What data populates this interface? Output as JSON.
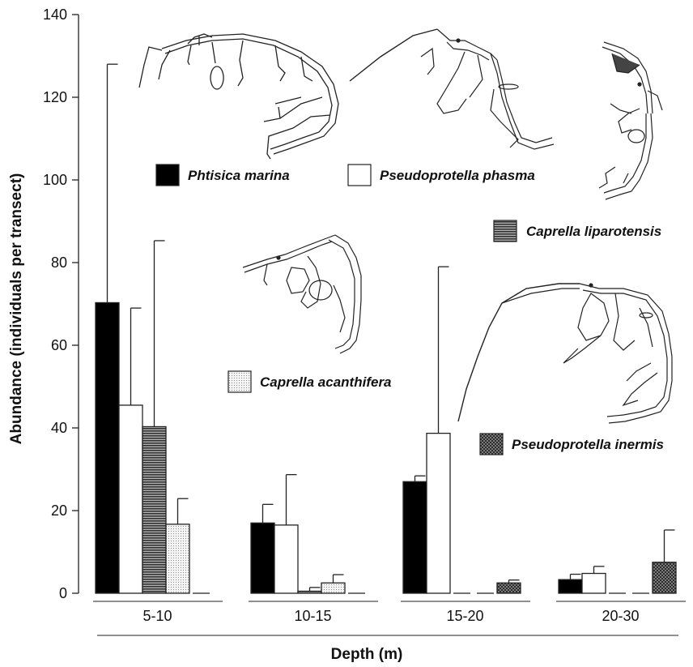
{
  "chart_data": {
    "type": "bar",
    "xlabel": "Depth (m)",
    "ylabel": "Abundance (individuals per transect)",
    "ylim": [
      0,
      140
    ],
    "yticks": [
      0,
      20,
      40,
      60,
      80,
      100,
      120,
      140
    ],
    "categories": [
      "5-10",
      "10-15",
      "15-20",
      "20-30"
    ],
    "grid": false,
    "error_bars": "upper",
    "series": [
      {
        "name": "Phtisica marina",
        "fill": "#000000",
        "pattern": "solid",
        "values": [
          70.3,
          17,
          27,
          3.3
        ],
        "errors": [
          57.7,
          4.5,
          1.4,
          1.3
        ]
      },
      {
        "name": "Pseudoprotella phasma",
        "fill": "#ffffff",
        "pattern": "solid",
        "values": [
          45.5,
          16.5,
          38.7,
          4.8
        ],
        "errors": [
          23.5,
          12.2,
          40.3,
          1.7
        ]
      },
      {
        "name": "Caprella liparotensis",
        "fill": "#555555",
        "pattern": "hstripes",
        "values": [
          40.3,
          0.5,
          0,
          0
        ],
        "errors": [
          45,
          0.9,
          0,
          0
        ]
      },
      {
        "name": "Caprella acanthifera",
        "fill": "#eeeeee",
        "pattern": "dots",
        "values": [
          16.7,
          2.5,
          0,
          0
        ],
        "errors": [
          6.2,
          2,
          0,
          0
        ]
      },
      {
        "name": "Pseudoprotella inermis",
        "fill": "#777777",
        "pattern": "crosshatch",
        "values": [
          0,
          0,
          2.5,
          7.5
        ],
        "errors": [
          0,
          0,
          0.7,
          7.8
        ]
      }
    ]
  }
}
